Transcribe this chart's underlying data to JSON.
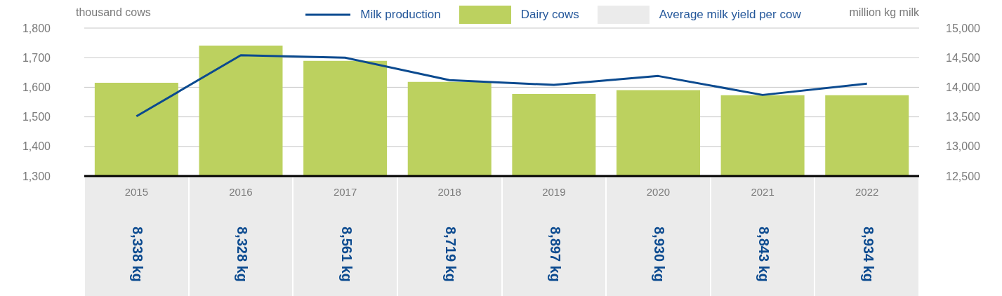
{
  "chart_data": [
    {
      "type": "bar",
      "categories": [
        "2015",
        "2016",
        "2017",
        "2018",
        "2019",
        "2020",
        "2021",
        "2022"
      ],
      "ylabel": "thousand cows",
      "y2label": "million kg milk",
      "ylim": [
        1300,
        1800
      ],
      "yticks": [
        {
          "value": 1300,
          "label": "1,300"
        },
        {
          "value": 1400,
          "label": "1,400"
        },
        {
          "value": 1500,
          "label": "1,500"
        },
        {
          "value": 1600,
          "label": "1,600"
        },
        {
          "value": 1700,
          "label": "1,700"
        },
        {
          "value": 1800,
          "label": "1,800"
        }
      ],
      "y2lim": [
        12500,
        15000
      ],
      "y2ticks": [
        {
          "value": 12500,
          "label": "12,500"
        },
        {
          "value": 13000,
          "label": "13,000"
        },
        {
          "value": 13500,
          "label": "13,500"
        },
        {
          "value": 14000,
          "label": "14,000"
        },
        {
          "value": 14500,
          "label": "14,500"
        },
        {
          "value": 15000,
          "label": "15,000"
        }
      ],
      "grid": "y",
      "legend": "top",
      "marker": "none",
      "line_style": "solid",
      "series": [
        {
          "name": "Milk production",
          "type": "line",
          "axis": "y2",
          "color": "#0b4a8f",
          "values": [
            13510,
            14540,
            14500,
            14120,
            14040,
            14190,
            13870,
            14060
          ]
        },
        {
          "name": "Dairy cows",
          "color": "#bcd15f",
          "values": [
            1615,
            1741,
            1689,
            1618,
            1577,
            1590,
            1573,
            1573
          ]
        }
      ]
    },
    {
      "type": "other",
      "categories": [
        null,
        null,
        null,
        null,
        null,
        null,
        null,
        null
      ],
      "legend": "top",
      "series": [
        {
          "name": "Average milk yield per cow",
          "color": "#ebebeb",
          "values": [
            8338,
            8328,
            8561,
            8719,
            8897,
            8930,
            8843,
            8934
          ],
          "value_labels": [
            "8,338 kg",
            "8,328 kg",
            "8,561 kg",
            "8,719 kg",
            "8,897 kg",
            "8,930 kg",
            "8,843 kg",
            "8,934 kg"
          ]
        }
      ]
    }
  ]
}
